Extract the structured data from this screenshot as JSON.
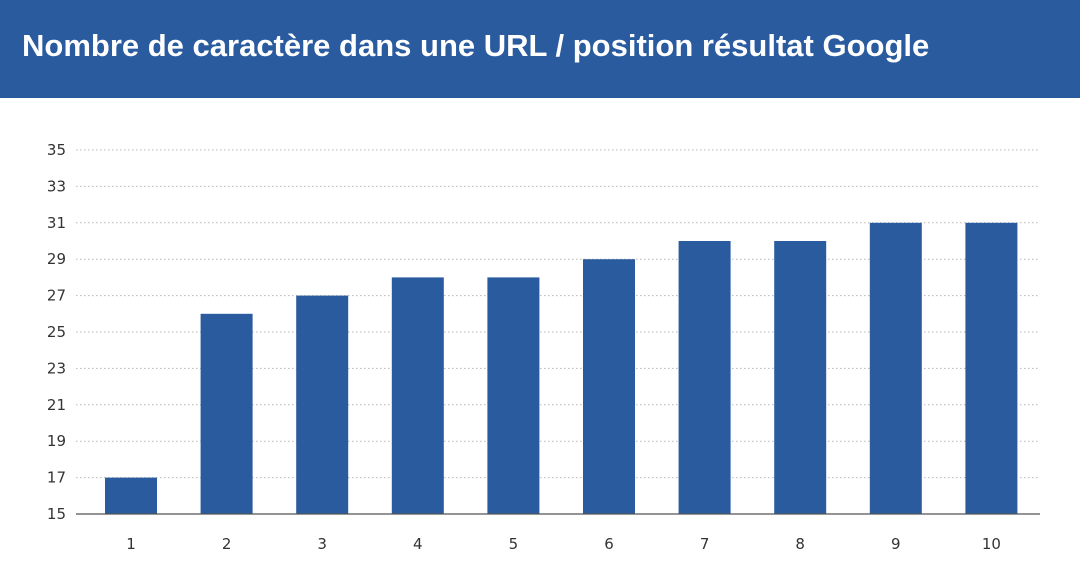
{
  "chart_data": {
    "type": "bar",
    "title": "Nombre de caractère dans une URL / position résultat Google",
    "xlabel": "",
    "ylabel": "",
    "categories": [
      "1",
      "2",
      "3",
      "4",
      "5",
      "6",
      "7",
      "8",
      "9",
      "10"
    ],
    "values": [
      17,
      26,
      27,
      28,
      28,
      29,
      30,
      30,
      31,
      31
    ],
    "ylim": [
      15,
      35
    ],
    "yticks": [
      15,
      17,
      19,
      21,
      23,
      25,
      27,
      29,
      31,
      33,
      35
    ],
    "grid": "horizontal dotted",
    "legend": "none",
    "bar_color": "#2a5b9f",
    "header_color": "#2a5b9f"
  }
}
